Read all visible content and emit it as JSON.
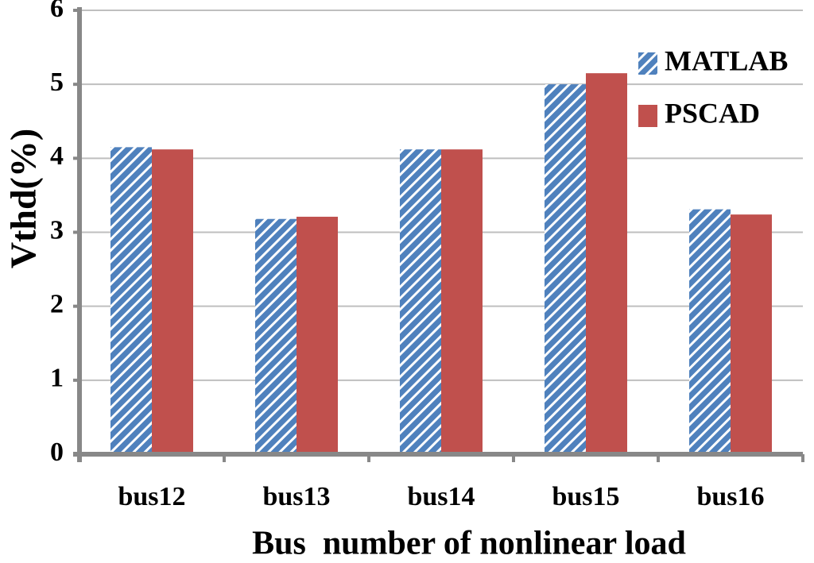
{
  "chart_data": {
    "type": "bar",
    "y_label": "Vthd(%)",
    "x_label": "Bus  number of nonlinear load",
    "categories": [
      "bus12",
      "bus13",
      "bus14",
      "bus15",
      "bus16"
    ],
    "series": [
      {
        "name": "MATLAB",
        "color": "#4f81bd",
        "hatch": true,
        "values": [
          4.15,
          3.18,
          4.12,
          5.0,
          3.31
        ]
      },
      {
        "name": "PSCAD",
        "color": "#c0504d",
        "hatch": false,
        "values": [
          4.12,
          3.21,
          4.12,
          5.15,
          3.24
        ]
      }
    ],
    "ylim": [
      0,
      6
    ],
    "yticks": [
      0,
      1,
      2,
      3,
      4,
      5,
      6
    ],
    "grid": true,
    "legend": "top-right"
  }
}
